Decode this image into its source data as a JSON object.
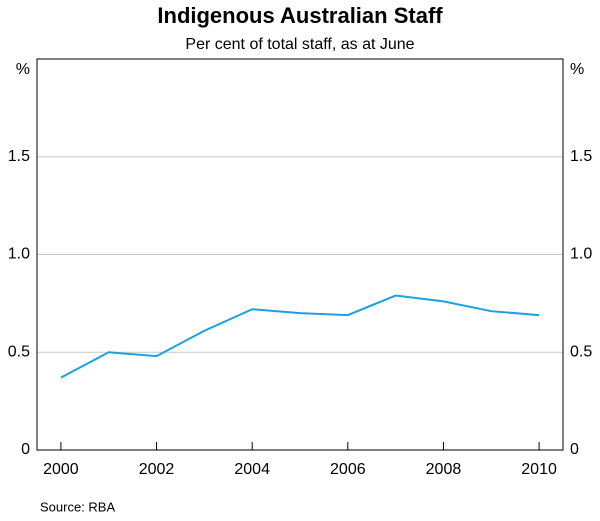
{
  "chart_data": {
    "type": "line",
    "title": "Indigenous Australian Staff",
    "subtitle": "Per cent of total staff, as at June",
    "y_unit": "%",
    "source": "Source: RBA",
    "x": [
      2000,
      2001,
      2002,
      2003,
      2004,
      2005,
      2006,
      2007,
      2008,
      2009,
      2010
    ],
    "series": [
      {
        "name": "Indigenous Australian Staff",
        "color": "#1ba1e2",
        "values": [
          0.37,
          0.5,
          0.48,
          0.61,
          0.72,
          0.7,
          0.69,
          0.79,
          0.76,
          0.71,
          0.69
        ]
      }
    ],
    "xlim": [
      1999.5,
      2010.5
    ],
    "xticks": [
      2000,
      2002,
      2004,
      2006,
      2008,
      2010
    ],
    "ylim": [
      0,
      2
    ],
    "yticks": [
      0,
      0.5,
      {
        "value": 1,
        "label": "1.0"
      },
      1.5
    ],
    "grid": true
  }
}
